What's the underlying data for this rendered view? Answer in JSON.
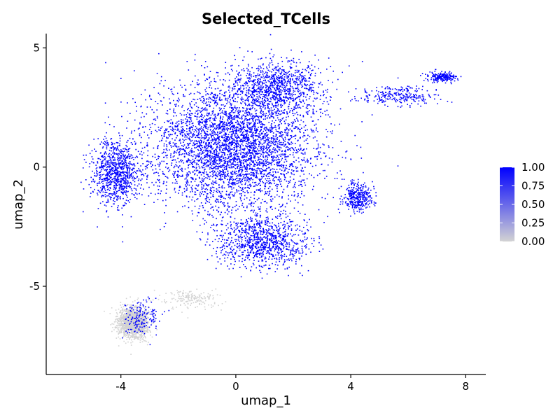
{
  "chart_data": {
    "type": "scatter",
    "title": "Selected_TCells",
    "xlabel": "umap_1",
    "ylabel": "umap_2",
    "xlim": [
      -6.6,
      8.7
    ],
    "ylim": [
      -8.7,
      5.6
    ],
    "xticks": [
      -4,
      0,
      4,
      8
    ],
    "xtick_labels": [
      "-4",
      "0",
      "4",
      "8"
    ],
    "yticks": [
      -5,
      0,
      5
    ],
    "ytick_labels": [
      "-5",
      "0",
      "5"
    ],
    "grid": false,
    "legend": {
      "placement": "right",
      "kind": "colorbar",
      "range": [
        0,
        1
      ],
      "ticks": [
        1.0,
        0.75,
        0.5,
        0.25,
        0.0
      ],
      "tick_labels": [
        "1.00",
        "0.75",
        "0.50",
        "0.25",
        "0.00"
      ]
    },
    "colors": {
      "low": "#d3d3d3",
      "high": "#0000ff"
    },
    "clusters": [
      {
        "region": "main",
        "value": 1,
        "center": [
          -0.1,
          0.9
        ],
        "spread": [
          2.9,
          2.6
        ],
        "points": 4200
      },
      {
        "region": "main",
        "value": 1,
        "center": [
          1.3,
          3.4
        ],
        "spread": [
          1.6,
          1.0
        ],
        "points": 900
      },
      {
        "region": "left-lobe",
        "value": 1,
        "center": [
          -4.2,
          -0.2
        ],
        "spread": [
          0.8,
          1.3
        ],
        "points": 900
      },
      {
        "region": "lower-lobe",
        "value": 1,
        "center": [
          0.9,
          -3.1
        ],
        "spread": [
          1.6,
          1.1
        ],
        "points": 1000
      },
      {
        "region": "right-lobe",
        "value": 1,
        "center": [
          4.2,
          -1.2
        ],
        "spread": [
          0.5,
          0.6
        ],
        "points": 350
      },
      {
        "region": "top-right-arm",
        "value": 1,
        "center": [
          5.6,
          3.0
        ],
        "spread": [
          1.4,
          0.4
        ],
        "points": 260
      },
      {
        "region": "top-right-tip",
        "value": 1,
        "center": [
          7.2,
          3.8
        ],
        "spread": [
          0.5,
          0.2
        ],
        "points": 200
      },
      {
        "region": "bottom-left",
        "value": 0,
        "center": [
          -3.6,
          -6.5
        ],
        "spread": [
          0.5,
          0.65
        ],
        "points": 1600
      },
      {
        "region": "bottom-left",
        "value": 1,
        "center": [
          -3.3,
          -6.3
        ],
        "spread": [
          0.6,
          0.7
        ],
        "points": 160
      },
      {
        "region": "bridge",
        "value": 0,
        "center": [
          -1.5,
          -5.5
        ],
        "spread": [
          1.0,
          0.4
        ],
        "points": 180
      }
    ]
  }
}
